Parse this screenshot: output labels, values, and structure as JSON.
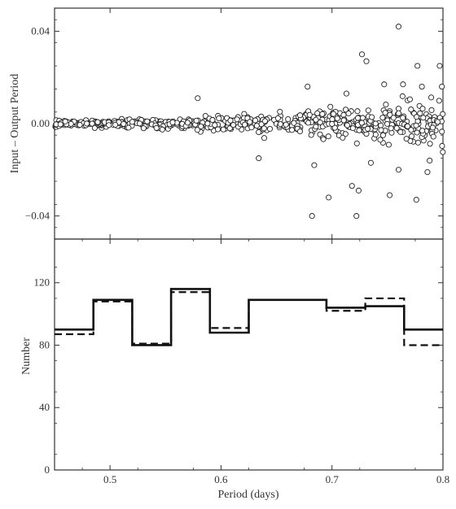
{
  "chart_data": [
    {
      "type": "scatter",
      "title": "",
      "xlabel": "",
      "ylabel": "Input – Output Period",
      "xlim": [
        0.45,
        0.8
      ],
      "ylim": [
        -0.05,
        0.05
      ],
      "yticks": [
        0.04,
        0.0,
        -0.04
      ],
      "ytick_labels": [
        "0.04",
        "0.00",
        "−0.04"
      ],
      "marker": "open-circle",
      "grid": false,
      "description_of_points": "many open circles; scatter around 0 grows with period",
      "outlier_points": [
        {
          "x": 0.76,
          "y": 0.042
        },
        {
          "x": 0.727,
          "y": 0.03
        },
        {
          "x": 0.731,
          "y": 0.027
        },
        {
          "x": 0.678,
          "y": 0.016
        },
        {
          "x": 0.764,
          "y": 0.017
        },
        {
          "x": 0.777,
          "y": 0.025
        },
        {
          "x": 0.781,
          "y": 0.016
        },
        {
          "x": 0.713,
          "y": 0.013
        },
        {
          "x": 0.579,
          "y": 0.011
        },
        {
          "x": 0.747,
          "y": 0.017
        },
        {
          "x": 0.682,
          "y": -0.04
        },
        {
          "x": 0.722,
          "y": -0.04
        },
        {
          "x": 0.697,
          "y": -0.032
        },
        {
          "x": 0.752,
          "y": -0.031
        },
        {
          "x": 0.776,
          "y": -0.033
        },
        {
          "x": 0.684,
          "y": -0.018
        },
        {
          "x": 0.718,
          "y": -0.027
        },
        {
          "x": 0.724,
          "y": -0.029
        },
        {
          "x": 0.735,
          "y": -0.017
        },
        {
          "x": 0.76,
          "y": -0.02
        },
        {
          "x": 0.786,
          "y": -0.021
        },
        {
          "x": 0.788,
          "y": -0.016
        },
        {
          "x": 0.797,
          "y": 0.025
        },
        {
          "x": 0.799,
          "y": 0.016
        },
        {
          "x": 0.634,
          "y": -0.015
        }
      ]
    },
    {
      "type": "line",
      "title": "",
      "xlabel": "Period (days)",
      "ylabel": "Number",
      "xlim": [
        0.45,
        0.8
      ],
      "ylim": [
        0,
        148
      ],
      "xticks": [
        0.5,
        0.6,
        0.7,
        0.8
      ],
      "xtick_labels": [
        "0.5",
        "0.6",
        "0.7",
        "0.8"
      ],
      "yticks": [
        0,
        40,
        80,
        120
      ],
      "ytick_labels": [
        "0",
        "40",
        "80",
        "120"
      ],
      "bin_edges": [
        0.45,
        0.485,
        0.52,
        0.555,
        0.59,
        0.625,
        0.66,
        0.695,
        0.73,
        0.765,
        0.8
      ],
      "series": [
        {
          "style": "solid",
          "values": [
            90,
            109,
            80,
            116,
            88,
            109,
            109,
            104,
            105,
            90
          ]
        },
        {
          "style": "dashed",
          "values": [
            87,
            108,
            81,
            114,
            91,
            109,
            109,
            102,
            110,
            80
          ]
        }
      ]
    }
  ]
}
